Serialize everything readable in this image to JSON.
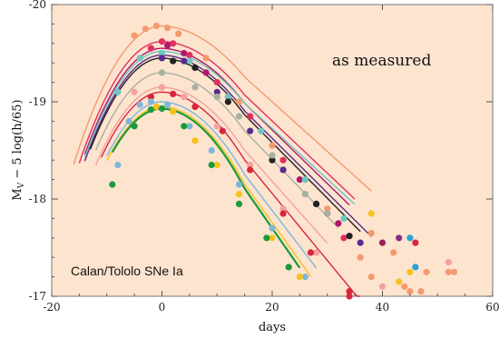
{
  "chart_data": {
    "type": "scatter",
    "xlabel": "days",
    "ylabel_main": "M",
    "ylabel_sub": "V",
    "ylabel_rest": " − 5 log(h/65)",
    "xlim": [
      -20,
      60
    ],
    "ylim": [
      -17,
      -20
    ],
    "x_ticks": [
      -20,
      0,
      20,
      40,
      60
    ],
    "x_tick_labels": [
      "-20",
      "0",
      "20",
      "40",
      "60"
    ],
    "y_ticks": [
      -17,
      -18,
      -19,
      -20
    ],
    "y_tick_labels": [
      "-17",
      "-18",
      "-19",
      "-20"
    ],
    "y_inverted": true,
    "grid": false,
    "annotations": [
      "as measured",
      "Calan/Tololo SNe Ia"
    ],
    "background_color": "#fde4cf",
    "series": [
      {
        "color": "#f39a6e",
        "peak": -19.78,
        "decline": 1.0,
        "start_x": -16,
        "points": [
          [
            -5,
            -19.68
          ],
          [
            -3,
            -19.75
          ],
          [
            -1,
            -19.78
          ],
          [
            1,
            -19.76
          ],
          [
            3,
            -19.7
          ],
          [
            8,
            -19.45
          ],
          [
            14,
            -19.0
          ],
          [
            20,
            -18.55
          ],
          [
            30,
            -17.9
          ],
          [
            42,
            -17.45
          ],
          [
            52,
            -17.25
          ]
        ]
      },
      {
        "color": "#e0305e",
        "peak": -19.62,
        "decline": 1.05,
        "start_x": -15,
        "points": [
          [
            -2,
            -19.55
          ],
          [
            0,
            -19.62
          ],
          [
            2,
            -19.6
          ],
          [
            5,
            -19.48
          ],
          [
            10,
            -19.2
          ],
          [
            16,
            -18.85
          ],
          [
            22,
            -18.4
          ],
          [
            28,
            -17.95
          ],
          [
            33,
            -17.6
          ]
        ]
      },
      {
        "color": "#b0186a",
        "peak": -19.55,
        "decline": 1.08,
        "start_x": -14,
        "points": [
          [
            1,
            -19.58
          ],
          [
            4,
            -19.5
          ],
          [
            8,
            -19.3
          ],
          [
            12,
            -19.05
          ],
          [
            18,
            -18.7
          ],
          [
            25,
            -18.2
          ],
          [
            32,
            -17.75
          ]
        ]
      },
      {
        "color": "#6ec7c0",
        "peak": -19.52,
        "decline": 1.02,
        "start_x": -14,
        "points": [
          [
            -8,
            -19.1
          ],
          [
            -4,
            -19.45
          ],
          [
            0,
            -19.5
          ],
          [
            5,
            -19.42
          ],
          [
            12,
            -19.05
          ],
          [
            18,
            -18.7
          ],
          [
            26,
            -18.2
          ],
          [
            33,
            -17.8
          ]
        ]
      },
      {
        "color": "#5a2a8e",
        "peak": -19.48,
        "decline": 1.1,
        "start_x": -14,
        "points": [
          [
            0,
            -19.45
          ],
          [
            4,
            -19.42
          ],
          [
            10,
            -19.1
          ],
          [
            16,
            -18.7
          ],
          [
            22,
            -18.3
          ],
          [
            30,
            -17.85
          ],
          [
            36,
            -17.55
          ]
        ]
      },
      {
        "color": "#222222",
        "peak": -19.45,
        "decline": 1.12,
        "start_x": -13,
        "points": [
          [
            2,
            -19.42
          ],
          [
            6,
            -19.35
          ],
          [
            12,
            -19.0
          ],
          [
            20,
            -18.4
          ],
          [
            28,
            -17.95
          ],
          [
            34,
            -17.62
          ]
        ]
      },
      {
        "color": "#a7b0a0",
        "peak": -19.3,
        "decline": 1.15,
        "start_x": -12,
        "points": [
          [
            0,
            -19.3
          ],
          [
            6,
            -19.15
          ],
          [
            10,
            -19.05
          ],
          [
            14,
            -18.85
          ],
          [
            20,
            -18.45
          ],
          [
            26,
            -18.05
          ],
          [
            30,
            -17.85
          ]
        ]
      },
      {
        "color": "#f3a1a1",
        "peak": -19.15,
        "decline": 1.25,
        "start_x": -12,
        "points": [
          [
            -5,
            -19.1
          ],
          [
            0,
            -19.15
          ],
          [
            4,
            -19.05
          ],
          [
            10,
            -18.75
          ],
          [
            16,
            -18.35
          ],
          [
            22,
            -17.9
          ],
          [
            28,
            -17.45
          ]
        ]
      },
      {
        "color": "#d8263c",
        "peak": -19.1,
        "decline": 1.35,
        "start_x": -11,
        "points": [
          [
            -2,
            -19.05
          ],
          [
            2,
            -19.08
          ],
          [
            6,
            -18.95
          ],
          [
            11,
            -18.7
          ],
          [
            16,
            -18.3
          ],
          [
            22,
            -17.85
          ],
          [
            27,
            -17.45
          ],
          [
            34,
            -17.05
          ]
        ]
      },
      {
        "color": "#7fb6d9",
        "peak": -19.0,
        "decline": 1.45,
        "start_x": -10,
        "points": [
          [
            -8,
            -18.35
          ],
          [
            -6,
            -18.8
          ],
          [
            -4,
            -18.97
          ],
          [
            -2,
            -19.0
          ],
          [
            1,
            -18.97
          ],
          [
            5,
            -18.75
          ],
          [
            9,
            -18.5
          ],
          [
            14,
            -18.15
          ],
          [
            20,
            -17.7
          ],
          [
            26,
            -17.2
          ]
        ]
      },
      {
        "color": "#f6c21b",
        "peak": -18.95,
        "decline": 1.55,
        "start_x": -10,
        "points": [
          [
            -1,
            -18.95
          ],
          [
            2,
            -18.9
          ],
          [
            6,
            -18.6
          ],
          [
            10,
            -18.35
          ],
          [
            14,
            -18.05
          ],
          [
            20,
            -17.6
          ],
          [
            25,
            -17.2
          ]
        ]
      },
      {
        "color": "#1b9a3c",
        "peak": -18.93,
        "decline": 1.6,
        "start_x": -9,
        "points": [
          [
            -9,
            -18.15
          ],
          [
            -5,
            -18.75
          ],
          [
            -2,
            -18.92
          ],
          [
            0,
            -18.93
          ],
          [
            4,
            -18.75
          ],
          [
            9,
            -18.35
          ],
          [
            14,
            -17.95
          ],
          [
            19,
            -17.6
          ],
          [
            23,
            -17.3
          ]
        ]
      }
    ],
    "extra_points": [
      {
        "x": 38,
        "y": -17.65,
        "color": "#f39a6e"
      },
      {
        "x": 40,
        "y": -17.55,
        "color": "#9a1f5c"
      },
      {
        "x": 43,
        "y": -17.6,
        "color": "#8b2a8c"
      },
      {
        "x": 45,
        "y": -17.6,
        "color": "#2aa1d8"
      },
      {
        "x": 46,
        "y": -17.55,
        "color": "#d8263c"
      },
      {
        "x": 45,
        "y": -17.25,
        "color": "#f6c21b"
      },
      {
        "x": 46,
        "y": -17.3,
        "color": "#2aa1d8"
      },
      {
        "x": 43,
        "y": -17.15,
        "color": "#f6c21b"
      },
      {
        "x": 44,
        "y": -17.1,
        "color": "#f39a6e"
      },
      {
        "x": 45,
        "y": -17.05,
        "color": "#f39a6e"
      },
      {
        "x": 47,
        "y": -17.05,
        "color": "#f39a6e"
      },
      {
        "x": 48,
        "y": -17.25,
        "color": "#f39a6e"
      },
      {
        "x": 52,
        "y": -17.35,
        "color": "#f3a1a1"
      },
      {
        "x": 53,
        "y": -17.25,
        "color": "#f39a6e"
      },
      {
        "x": 34,
        "y": -17.0,
        "color": "#d8263c"
      },
      {
        "x": 36,
        "y": -17.4,
        "color": "#f39a6e"
      },
      {
        "x": 38,
        "y": -17.2,
        "color": "#f39a6e"
      },
      {
        "x": 40,
        "y": -17.1,
        "color": "#f3a1a1"
      },
      {
        "x": 38,
        "y": -17.85,
        "color": "#f6c21b"
      }
    ]
  }
}
